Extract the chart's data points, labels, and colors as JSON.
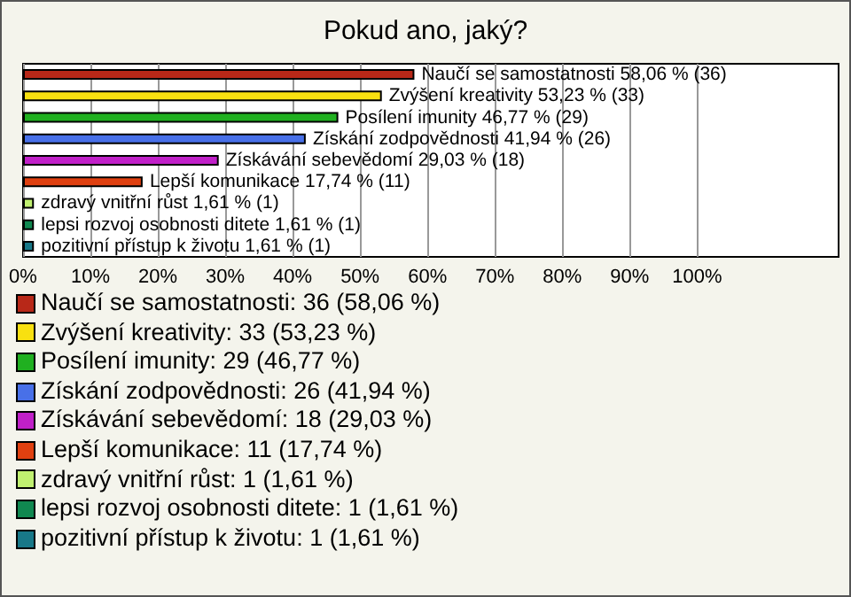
{
  "chart_data": {
    "type": "bar",
    "orientation": "horizontal",
    "title": "Pokud ano, jaký?",
    "categories": [
      "Naučí se samostatnosti",
      "Zvýšení kreativity",
      "Posílení imunity",
      "Získání zodpovědnosti",
      "Získávání sebevědomí",
      "Lepší komunikace",
      "zdravý vnitřní růst",
      "lepsi rozvoj osobnosti ditete",
      "pozitivní přístup k životu"
    ],
    "values": [
      58.06,
      53.23,
      46.77,
      41.94,
      29.03,
      17.74,
      1.61,
      1.61,
      1.61
    ],
    "colors": [
      "#b82818",
      "#f8e010",
      "#20b020",
      "#4870e8",
      "#c020c8",
      "#e04010",
      "#c0f070",
      "#108850",
      "#187888"
    ],
    "value_labels": [
      "58,06 % (36)",
      "53,23 % (33)",
      "46,77 % (29)",
      "41,94 % (26)",
      "29,03 % (18)",
      "17,74 % (11)",
      "1,61 % (1)",
      "1,61 % (1)",
      "1,61 % (1)"
    ],
    "xlim": [
      0,
      121
    ],
    "xticks": [
      {
        "value": 0,
        "label": "0%"
      },
      {
        "value": 10,
        "label": "10%"
      },
      {
        "value": 20,
        "label": "20%"
      },
      {
        "value": 30,
        "label": "30%"
      },
      {
        "value": 40,
        "label": "40%"
      },
      {
        "value": 50,
        "label": "50%"
      },
      {
        "value": 60,
        "label": "60%"
      },
      {
        "value": 70,
        "label": "70%"
      },
      {
        "value": 80,
        "label": "80%"
      },
      {
        "value": 90,
        "label": "90%"
      },
      {
        "value": 100,
        "label": "100%"
      }
    ],
    "grid": "x",
    "annotations": [
      "Naučí se samostatnosti: 36 (58,06 %)",
      "Zvýšení kreativity: 33 (53,23 %)",
      "Posílení imunity: 29 (46,77 %)",
      "Získání zodpovědnosti: 26 (41,94 %)",
      "Získávání sebevědomí: 18 (29,03 %)",
      "Lepší komunikace: 11 (17,74 %)",
      "zdravý vnitřní růst: 1 (1,61 %)",
      "lepsi rozvoj osobnosti ditete: 1 (1,61 %)",
      "pozitivní přístup k životu: 1 (1,61 %)"
    ]
  }
}
